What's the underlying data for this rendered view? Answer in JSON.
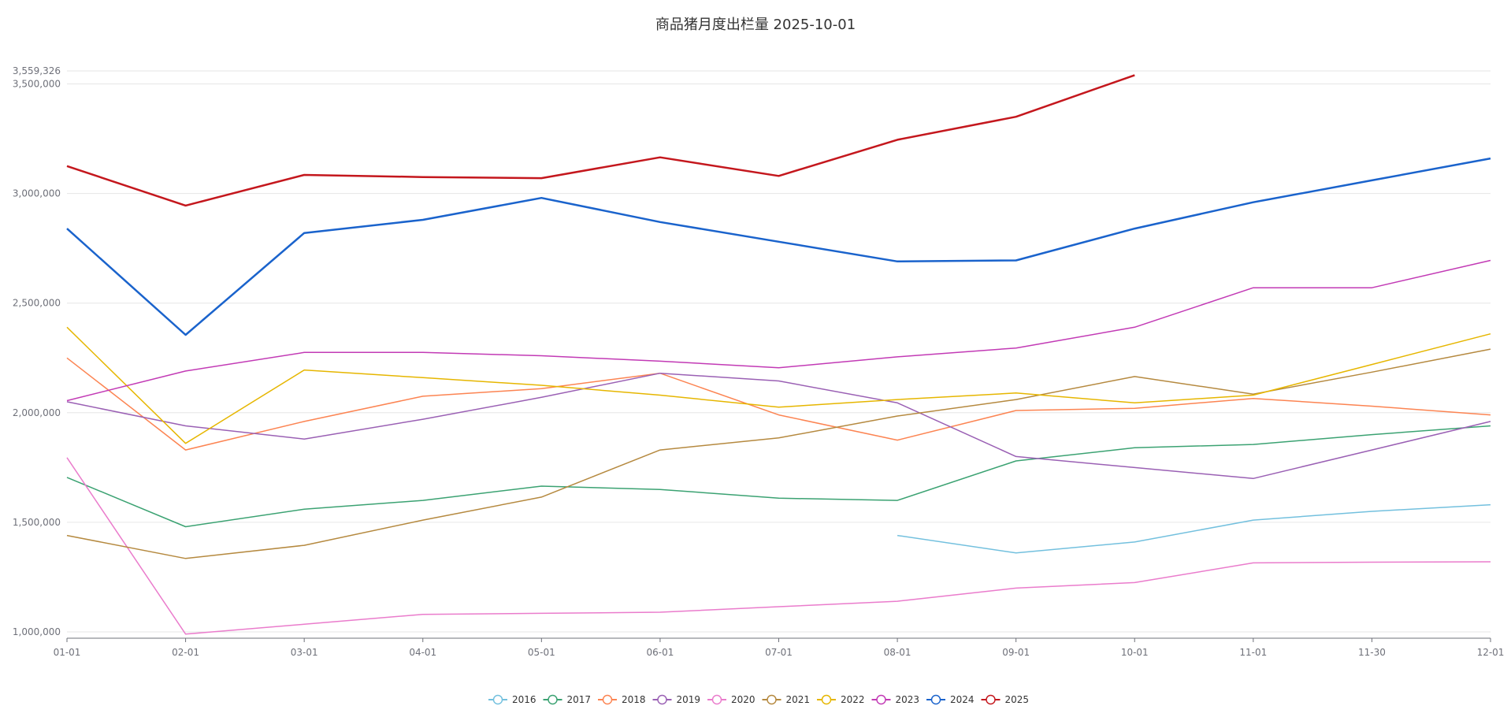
{
  "chart_data": {
    "type": "line",
    "title": "商品猪月度出栏量 2025-10-01",
    "xlabel": "",
    "ylabel": "",
    "categories": [
      "01-01",
      "02-01",
      "03-01",
      "04-01",
      "05-01",
      "06-01",
      "07-01",
      "08-01",
      "09-01",
      "10-01",
      "11-01",
      "11-30",
      "12-01"
    ],
    "y_ticks": [
      "1,000,000",
      "1,500,000",
      "2,000,000",
      "2,500,000",
      "3,000,000",
      "3,500,000"
    ],
    "y_max_label": "3,559,326",
    "ylim": [
      1000000,
      3559326
    ],
    "grid": true,
    "legend_position": "bottom-center",
    "series": [
      {
        "name": "2016",
        "color": "#73c0de",
        "width": 1.5,
        "values": [
          null,
          null,
          null,
          null,
          null,
          null,
          null,
          1440000,
          1360000,
          1410000,
          1510000,
          1550000,
          1580000
        ]
      },
      {
        "name": "2017",
        "color": "#3ba272",
        "width": 1.5,
        "values": [
          1705000,
          1480000,
          1560000,
          1600000,
          1665000,
          1650000,
          1610000,
          1600000,
          1780000,
          1840000,
          1855000,
          1900000,
          1940000
        ]
      },
      {
        "name": "2018",
        "color": "#fc8452",
        "width": 1.5,
        "values": [
          2250000,
          1830000,
          1960000,
          2075000,
          2110000,
          2180000,
          1990000,
          1875000,
          2010000,
          2020000,
          2065000,
          2030000,
          1990000
        ]
      },
      {
        "name": "2019",
        "color": "#9a60b4",
        "width": 1.5,
        "values": [
          2050000,
          1940000,
          1880000,
          1970000,
          2070000,
          2180000,
          2145000,
          2045000,
          1800000,
          1750000,
          1700000,
          1830000,
          1960000
        ]
      },
      {
        "name": "2020",
        "color": "#ea7ccc",
        "width": 1.5,
        "values": [
          1795000,
          990000,
          1035000,
          1080000,
          1085000,
          1090000,
          1115000,
          1140000,
          1200000,
          1225000,
          1315000,
          1318000,
          1320000
        ]
      },
      {
        "name": "2021",
        "color": "#b5893f",
        "width": 1.5,
        "values": [
          1440000,
          1335000,
          1395000,
          1510000,
          1615000,
          1830000,
          1885000,
          1985000,
          2060000,
          2165000,
          2085000,
          2185000,
          2290000
        ]
      },
      {
        "name": "2022",
        "color": "#e6b600",
        "width": 1.5,
        "values": [
          2390000,
          1860000,
          2195000,
          2160000,
          2125000,
          2080000,
          2025000,
          2060000,
          2090000,
          2045000,
          2080000,
          2220000,
          2360000
        ]
      },
      {
        "name": "2023",
        "color": "#c23ab5",
        "width": 1.5,
        "values": [
          2055000,
          2190000,
          2275000,
          2275000,
          2260000,
          2235000,
          2205000,
          2255000,
          2295000,
          2390000,
          2570000,
          2570000,
          2695000
        ]
      },
      {
        "name": "2024",
        "color": "#1a63cc",
        "width": 2.5,
        "values": [
          2840000,
          2355000,
          2820000,
          2880000,
          2980000,
          2870000,
          2780000,
          2690000,
          2695000,
          2840000,
          2960000,
          3060000,
          3160000
        ]
      },
      {
        "name": "2025",
        "color": "#c4171d",
        "width": 2.5,
        "values": [
          3125000,
          2945000,
          3085000,
          3075000,
          3070000,
          3165000,
          3080000,
          3245000,
          3350000,
          3540000,
          null,
          null,
          null
        ]
      }
    ]
  }
}
